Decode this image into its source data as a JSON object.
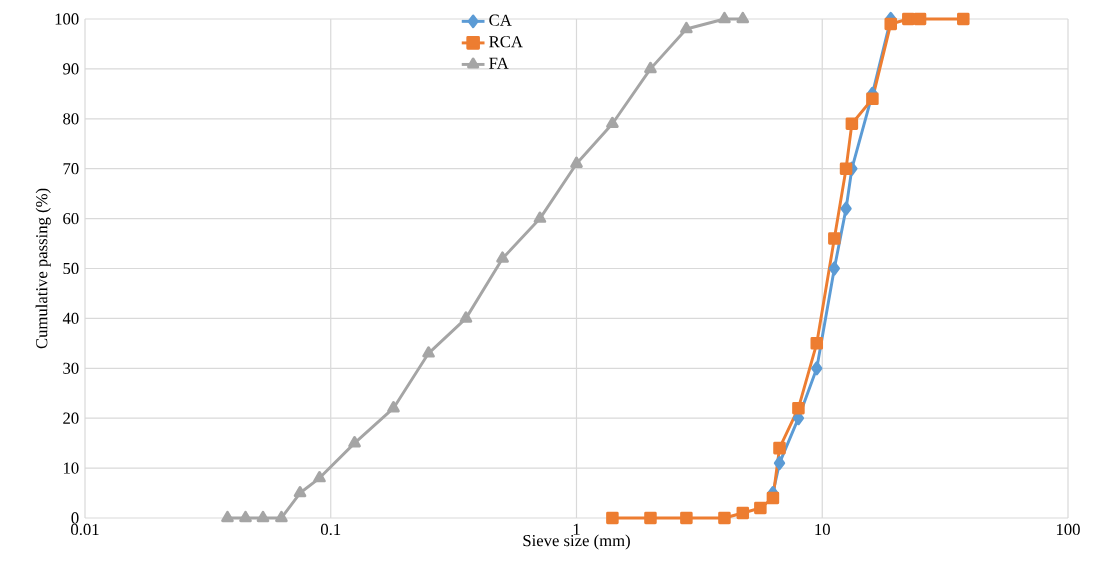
{
  "chart_data": {
    "type": "line",
    "xlabel": "Sieve size (mm)",
    "ylabel": "Cumulative passing (%)",
    "log": "x",
    "xlim": [
      0.01,
      100
    ],
    "xticks": [
      0.01,
      0.1,
      1,
      10,
      100
    ],
    "ylim": [
      0,
      100
    ],
    "yticks": [
      0,
      10,
      20,
      30,
      40,
      50,
      60,
      70,
      80,
      90,
      100
    ],
    "grid": true,
    "legend": "top",
    "line_style": "solid",
    "series": [
      {
        "name": "CA",
        "color": "#5b9bd5",
        "marker": "diamond",
        "x": [
          6.3,
          6.7,
          8,
          9.5,
          11.2,
          12.5,
          13.2,
          16,
          19
        ],
        "values": [
          5,
          11,
          20,
          30,
          50,
          62,
          70,
          85,
          100
        ]
      },
      {
        "name": "RCA",
        "color": "#ed7d31",
        "marker": "square",
        "x": [
          1.4,
          2,
          2.8,
          4,
          4.75,
          5.6,
          6.3,
          6.7,
          8,
          9.5,
          11.2,
          12.5,
          13.2,
          16,
          19,
          22.4,
          25,
          37.5
        ],
        "values": [
          0,
          0,
          0,
          0,
          1,
          2,
          4,
          14,
          22,
          35,
          56,
          70,
          79,
          84,
          99,
          100,
          100,
          100
        ]
      },
      {
        "name": "FA",
        "color": "#a5a5a5",
        "marker": "triangle",
        "x": [
          0.038,
          0.045,
          0.053,
          0.063,
          0.075,
          0.09,
          0.125,
          0.18,
          0.25,
          0.355,
          0.5,
          0.71,
          1,
          1.4,
          2,
          2.8,
          4,
          4.75
        ],
        "values": [
          0,
          0,
          0,
          0,
          5,
          8,
          15,
          22,
          33,
          40,
          52,
          60,
          71,
          79,
          90,
          98,
          100,
          100
        ]
      }
    ]
  }
}
